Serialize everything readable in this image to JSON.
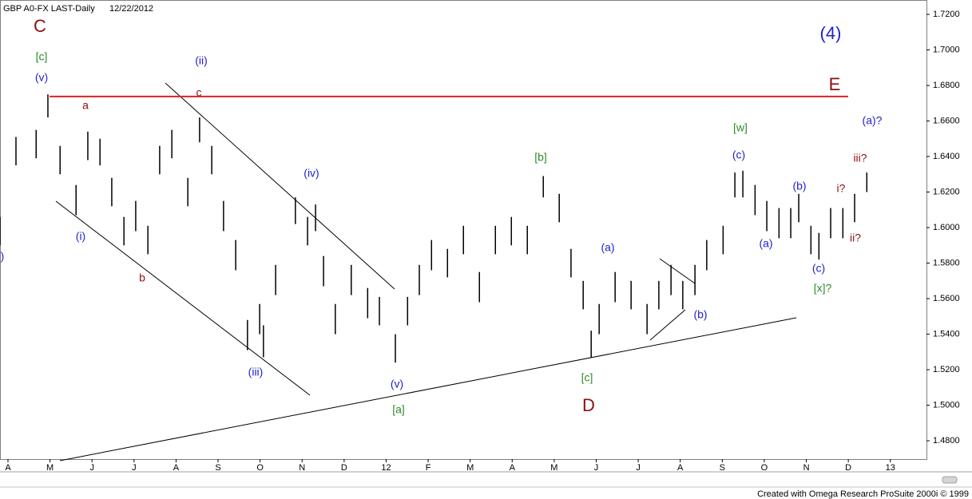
{
  "chart_data": {
    "type": "price-bars",
    "title": "GBP A0-FX LAST-Daily",
    "date": "12/22/2012",
    "footer": "Created with Omega Research ProSuite 2000i © 1999",
    "color": "#000000",
    "x": [
      -0.19,
      0.19,
      0.67,
      0.95,
      1.24,
      1.62,
      1.9,
      2.19,
      2.47,
      2.76,
      3.04,
      3.33,
      3.61,
      3.9,
      4.28,
      4.56,
      4.85,
      5.13,
      5.42,
      5.7,
      5.99,
      6.08,
      6.37,
      6.84,
      7.13,
      7.32,
      7.51,
      7.79,
      8.17,
      8.56,
      8.84,
      9.22,
      9.51,
      9.79,
      10.08,
      10.46,
      10.84,
      11.22,
      11.6,
      11.98,
      12.36,
      12.74,
      13.12,
      13.4,
      13.69,
      13.88,
      14.07,
      14.45,
      14.83,
      15.21,
      15.49,
      15.78,
      16.06,
      16.35,
      16.63,
      17.02,
      17.3,
      17.49,
      17.78,
      18.06,
      18.35,
      18.63,
      18.82,
      19.11,
      19.3,
      19.58,
      19.87,
      20.15,
      20.44
    ],
    "high": [
      1.606,
      1.651,
      1.655,
      1.675,
      1.646,
      1.624,
      1.654,
      1.65,
      1.628,
      1.606,
      1.615,
      1.601,
      1.646,
      1.655,
      1.628,
      1.662,
      1.646,
      1.615,
      1.593,
      1.548,
      1.557,
      1.545,
      1.579,
      1.617,
      1.606,
      1.613,
      1.584,
      1.557,
      1.579,
      1.566,
      1.561,
      1.54,
      1.561,
      1.579,
      1.593,
      1.588,
      1.601,
      1.575,
      1.601,
      1.606,
      1.601,
      1.629,
      1.619,
      1.588,
      1.57,
      1.542,
      1.557,
      1.575,
      1.57,
      1.557,
      1.57,
      1.579,
      1.57,
      1.579,
      1.593,
      1.601,
      1.631,
      1.632,
      1.624,
      1.615,
      1.611,
      1.611,
      1.619,
      1.601,
      1.597,
      1.611,
      1.611,
      1.619,
      1.631
    ],
    "low": [
      1.59,
      1.635,
      1.639,
      1.662,
      1.63,
      1.607,
      1.638,
      1.635,
      1.612,
      1.59,
      1.598,
      1.585,
      1.63,
      1.639,
      1.612,
      1.648,
      1.63,
      1.598,
      1.576,
      1.531,
      1.54,
      1.527,
      1.562,
      1.602,
      1.59,
      1.598,
      1.567,
      1.54,
      1.562,
      1.549,
      1.545,
      1.524,
      1.545,
      1.562,
      1.576,
      1.572,
      1.585,
      1.558,
      1.585,
      1.59,
      1.585,
      1.617,
      1.603,
      1.572,
      1.554,
      1.527,
      1.54,
      1.558,
      1.554,
      1.54,
      1.554,
      1.562,
      1.554,
      1.562,
      1.576,
      1.585,
      1.617,
      1.617,
      1.607,
      1.598,
      1.594,
      1.594,
      1.603,
      1.585,
      1.582,
      1.594,
      1.594,
      1.603,
      1.62
    ],
    "level": {
      "value": 1.6738,
      "color": "#e02020"
    },
    "xlim": [
      -0.19,
      21.86
    ],
    "xticks": [
      {
        "value": 0,
        "label": "A"
      },
      {
        "value": 1,
        "label": "M"
      },
      {
        "value": 2,
        "label": "J"
      },
      {
        "value": 3,
        "label": "J"
      },
      {
        "value": 4,
        "label": "A"
      },
      {
        "value": 5,
        "label": "S"
      },
      {
        "value": 6,
        "label": "O"
      },
      {
        "value": 7,
        "label": "N"
      },
      {
        "value": 8,
        "label": "D"
      },
      {
        "value": 9,
        "label": "12"
      },
      {
        "value": 10,
        "label": "F"
      },
      {
        "value": 11,
        "label": "M"
      },
      {
        "value": 12,
        "label": "A"
      },
      {
        "value": 13,
        "label": "M"
      },
      {
        "value": 14,
        "label": "J"
      },
      {
        "value": 15,
        "label": "J"
      },
      {
        "value": 16,
        "label": "A"
      },
      {
        "value": 17,
        "label": "S"
      },
      {
        "value": 18,
        "label": "O"
      },
      {
        "value": 19,
        "label": "N"
      },
      {
        "value": 20,
        "label": "D"
      },
      {
        "value": 21,
        "label": "13"
      }
    ],
    "ylim": [
      1.4697,
      1.7281
    ],
    "yticks": [
      {
        "value": 1.48,
        "label": "1.4800"
      },
      {
        "value": 1.5,
        "label": "1.5000"
      },
      {
        "value": 1.52,
        "label": "1.5200"
      },
      {
        "value": 1.54,
        "label": "1.5400"
      },
      {
        "value": 1.56,
        "label": "1.5600"
      },
      {
        "value": 1.58,
        "label": "1.5800"
      },
      {
        "value": 1.6,
        "label": "1.6000"
      },
      {
        "value": 1.62,
        "label": "1.6200"
      },
      {
        "value": 1.64,
        "label": "1.6400"
      },
      {
        "value": 1.66,
        "label": "1.6600"
      },
      {
        "value": 1.68,
        "label": "1.6800"
      },
      {
        "value": 1.7,
        "label": "1.7000"
      },
      {
        "value": 1.72,
        "label": "1.7200"
      }
    ],
    "annotations": [
      "C",
      "[c]",
      "(v)",
      "a",
      "(ii)",
      "c",
      "(iv)",
      "(i)",
      "b",
      "(iii)",
      "(v)",
      "[a]",
      "[b]",
      "(a)",
      "[c]",
      "D",
      "(b)",
      "[w]",
      "(c)",
      "(b)",
      "(a)",
      "(c)",
      "[x]?",
      "i?",
      "ii?",
      "iii?",
      "(a)?",
      "(4)",
      "E",
      ")"
    ]
  }
}
